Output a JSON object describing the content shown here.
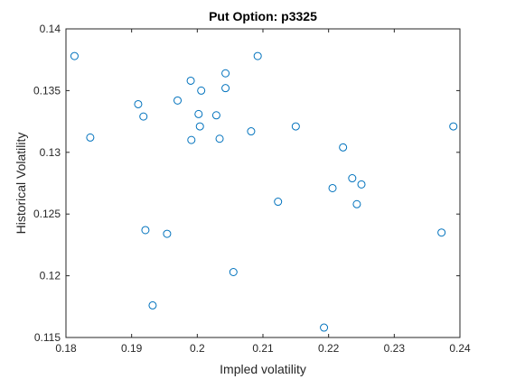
{
  "chart_data": {
    "type": "scatter",
    "title": "Put Option: p3325",
    "xlabel": "Impled volatility",
    "ylabel": "Historical Volatility",
    "xlim": [
      0.18,
      0.24
    ],
    "ylim": [
      0.115,
      0.14
    ],
    "xticks": [
      "0.18",
      "0.19",
      "0.2",
      "0.21",
      "0.22",
      "0.23",
      "0.24"
    ],
    "yticks": [
      "0.115",
      "0.12",
      "0.125",
      "0.13",
      "0.135",
      "0.14"
    ],
    "grid": false,
    "marker": "circle",
    "marker_color": "#0072BD",
    "points": [
      {
        "x": 0.1813,
        "y": 0.1378
      },
      {
        "x": 0.1837,
        "y": 0.1312
      },
      {
        "x": 0.191,
        "y": 0.1339
      },
      {
        "x": 0.1918,
        "y": 0.1329
      },
      {
        "x": 0.1921,
        "y": 0.1237
      },
      {
        "x": 0.1932,
        "y": 0.1176
      },
      {
        "x": 0.1954,
        "y": 0.1234
      },
      {
        "x": 0.197,
        "y": 0.1342
      },
      {
        "x": 0.199,
        "y": 0.1358
      },
      {
        "x": 0.1991,
        "y": 0.131
      },
      {
        "x": 0.2002,
        "y": 0.1331
      },
      {
        "x": 0.2004,
        "y": 0.1321
      },
      {
        "x": 0.2006,
        "y": 0.135
      },
      {
        "x": 0.2029,
        "y": 0.133
      },
      {
        "x": 0.2034,
        "y": 0.1311
      },
      {
        "x": 0.2043,
        "y": 0.1364
      },
      {
        "x": 0.2043,
        "y": 0.1352
      },
      {
        "x": 0.2055,
        "y": 0.1203
      },
      {
        "x": 0.2082,
        "y": 0.1317
      },
      {
        "x": 0.2092,
        "y": 0.1378
      },
      {
        "x": 0.2123,
        "y": 0.126
      },
      {
        "x": 0.215,
        "y": 0.1321
      },
      {
        "x": 0.2193,
        "y": 0.1158
      },
      {
        "x": 0.2206,
        "y": 0.1271
      },
      {
        "x": 0.2222,
        "y": 0.1304
      },
      {
        "x": 0.2236,
        "y": 0.1279
      },
      {
        "x": 0.2243,
        "y": 0.1258
      },
      {
        "x": 0.225,
        "y": 0.1274
      },
      {
        "x": 0.2372,
        "y": 0.1235
      },
      {
        "x": 0.239,
        "y": 0.1321
      }
    ]
  }
}
